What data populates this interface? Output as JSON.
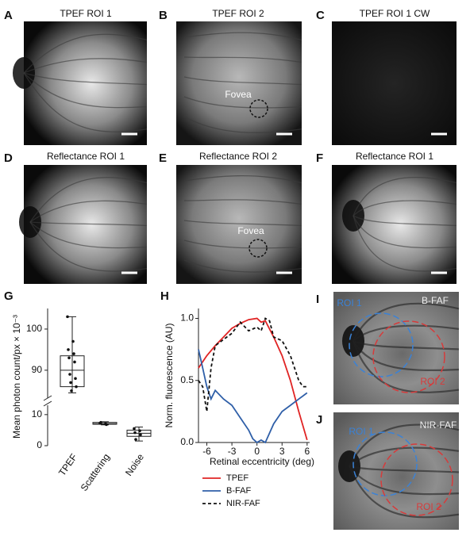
{
  "panels": [
    {
      "letter": "A",
      "title": "TPEF ROI 1"
    },
    {
      "letter": "B",
      "title": "TPEF ROI 2",
      "annotation": "Fovea"
    },
    {
      "letter": "C",
      "title": "TPEF ROI 1 CW"
    },
    {
      "letter": "D",
      "title": "Reflectance ROI 1"
    },
    {
      "letter": "E",
      "title": "Reflectance ROI 2",
      "annotation": "Fovea"
    },
    {
      "letter": "F",
      "title": "Reflectance ROI 1"
    },
    {
      "letter": "I",
      "title": "B-FAF",
      "rois": [
        "ROI 1",
        "ROI 2"
      ]
    },
    {
      "letter": "J",
      "title": "NIR-FAF",
      "rois": [
        "ROI 1",
        "ROI 2"
      ]
    }
  ],
  "chart_data": [
    {
      "type": "box",
      "label": "G",
      "y_label": "Mean photon count/px × 10⁻³",
      "categories": [
        "TPEF",
        "Scattering",
        "Noise"
      ],
      "ylim": [
        0,
        105
      ],
      "axis_break": [
        12,
        84
      ],
      "yticks": [
        0,
        10,
        90,
        100
      ],
      "boxes": [
        {
          "whislo": 84.5,
          "q1": 86,
          "med": 90,
          "q3": 93.5,
          "whishi": 103,
          "points": [
            103,
            97,
            95,
            94,
            93,
            92,
            89,
            88,
            87,
            86,
            85
          ]
        },
        {
          "whislo": 6.7,
          "q1": 6.9,
          "med": 7.1,
          "q3": 7.5,
          "whishi": 7.7,
          "points": [
            7.2,
            7.0,
            7.5,
            6.8
          ]
        },
        {
          "whislo": 1.5,
          "q1": 3,
          "med": 4,
          "q3": 5,
          "whishi": 6,
          "points": [
            5.5,
            4.8,
            4.2,
            3.5,
            2.0
          ]
        }
      ]
    },
    {
      "type": "line",
      "label": "H",
      "x_label": "Retinal eccentricity (deg)",
      "y_label": "Norm. fluorescence (AU)",
      "xlim": [
        -7,
        6.3
      ],
      "ylim": [
        0,
        1.08
      ],
      "xticks": [
        -6,
        -3,
        0,
        3,
        6
      ],
      "yticks": [
        {
          "value": 0,
          "label": "0.0"
        },
        0.5,
        {
          "value": 1,
          "label": "1.0"
        }
      ],
      "series": [
        {
          "name": "TPEF",
          "color": "#e02424",
          "dash": false,
          "x": [
            -7,
            -6,
            -5,
            -4,
            -3,
            -2,
            -1,
            0,
            0.5,
            1,
            2,
            3,
            4,
            5,
            6
          ],
          "values": [
            0.6,
            0.7,
            0.78,
            0.85,
            0.92,
            0.96,
            0.99,
            1.0,
            0.97,
            0.98,
            0.85,
            0.7,
            0.5,
            0.25,
            0.02
          ]
        },
        {
          "name": "B-FAF",
          "color": "#2f5fa8",
          "dash": false,
          "x": [
            -7,
            -6.5,
            -6,
            -5.5,
            -5,
            -4,
            -3,
            -2,
            -1,
            -0.5,
            0,
            0.5,
            1,
            2,
            3,
            4,
            5,
            6
          ],
          "values": [
            0.75,
            0.6,
            0.45,
            0.35,
            0.42,
            0.35,
            0.3,
            0.2,
            0.1,
            0.03,
            0.0,
            0.02,
            0.0,
            0.15,
            0.25,
            0.3,
            0.35,
            0.4
          ]
        },
        {
          "name": "NIR-FAF",
          "color": "#111111",
          "dash": true,
          "x": [
            -7,
            -6.5,
            -6,
            -5.5,
            -5,
            -4,
            -3,
            -2,
            -1,
            0,
            0.5,
            1,
            1.5,
            2,
            3,
            4,
            5,
            5.5,
            6
          ],
          "values": [
            0.5,
            0.45,
            0.25,
            0.6,
            0.78,
            0.83,
            0.88,
            0.97,
            0.9,
            0.93,
            0.9,
            1.0,
            0.98,
            0.85,
            0.82,
            0.7,
            0.5,
            0.45,
            0.45
          ]
        }
      ]
    }
  ]
}
